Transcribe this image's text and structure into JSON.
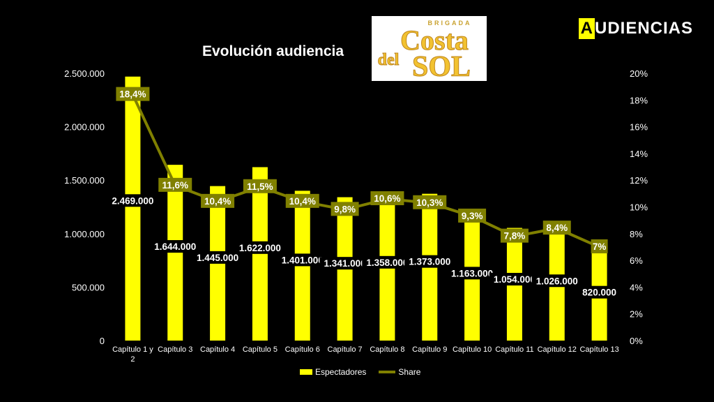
{
  "brand": {
    "first_letter": "A",
    "rest": "UDIENCIAS"
  },
  "logo": {
    "line1": "BRIGADA",
    "line2": "Costa",
    "line3": "del",
    "line4": "SOL"
  },
  "colors": {
    "bar": "#ffff00",
    "line": "#808000",
    "background": "#000000",
    "label_box": "#808000"
  },
  "chart_data": {
    "type": "bar",
    "title": "Evolución audiencia",
    "categories": [
      "Capítulo 1 y 2",
      "Capítulo 3",
      "Capítulo 4",
      "Capítulo 5",
      "Capítulo 6",
      "Capítulo 7",
      "Capítulo 8",
      "Capítulo 9",
      "Capítulo 10",
      "Capítulo 11",
      "Capítulo 12",
      "Capítulo 13"
    ],
    "series": [
      {
        "name": "Espectadores",
        "type": "bar",
        "axis": "left",
        "values": [
          2469000,
          1644000,
          1445000,
          1622000,
          1401000,
          1341000,
          1358000,
          1373000,
          1163000,
          1054000,
          1026000,
          820000
        ],
        "labels": [
          "2.469.000",
          "1.644.000",
          "1.445.000",
          "1.622.000",
          "1.401.000",
          "1.341.000",
          "1.358.000",
          "1.373.000",
          "1.163.000",
          "1.054.000",
          "1.026.000",
          "820.000"
        ]
      },
      {
        "name": "Share",
        "type": "line",
        "axis": "right",
        "values": [
          18.4,
          11.6,
          10.4,
          11.5,
          10.4,
          9.8,
          10.6,
          10.3,
          9.3,
          7.8,
          8.4,
          7.0
        ],
        "labels": [
          "18,4%",
          "11,6%",
          "10,4%",
          "11,5%",
          "10,4%",
          "9,8%",
          "10,6%",
          "10,3%",
          "9,3%",
          "7,8%",
          "8,4%",
          "7%"
        ]
      }
    ],
    "ylim_left": [
      0,
      2500000
    ],
    "ylim_right": [
      0,
      20
    ],
    "left_ticks": [
      "0",
      "500.000",
      "1.000.000",
      "1.500.000",
      "2.000.000",
      "2.500.000"
    ],
    "right_ticks": [
      "0%",
      "2%",
      "4%",
      "6%",
      "8%",
      "10%",
      "12%",
      "14%",
      "16%",
      "18%",
      "20%"
    ],
    "grid": false,
    "legend": "bottom"
  }
}
